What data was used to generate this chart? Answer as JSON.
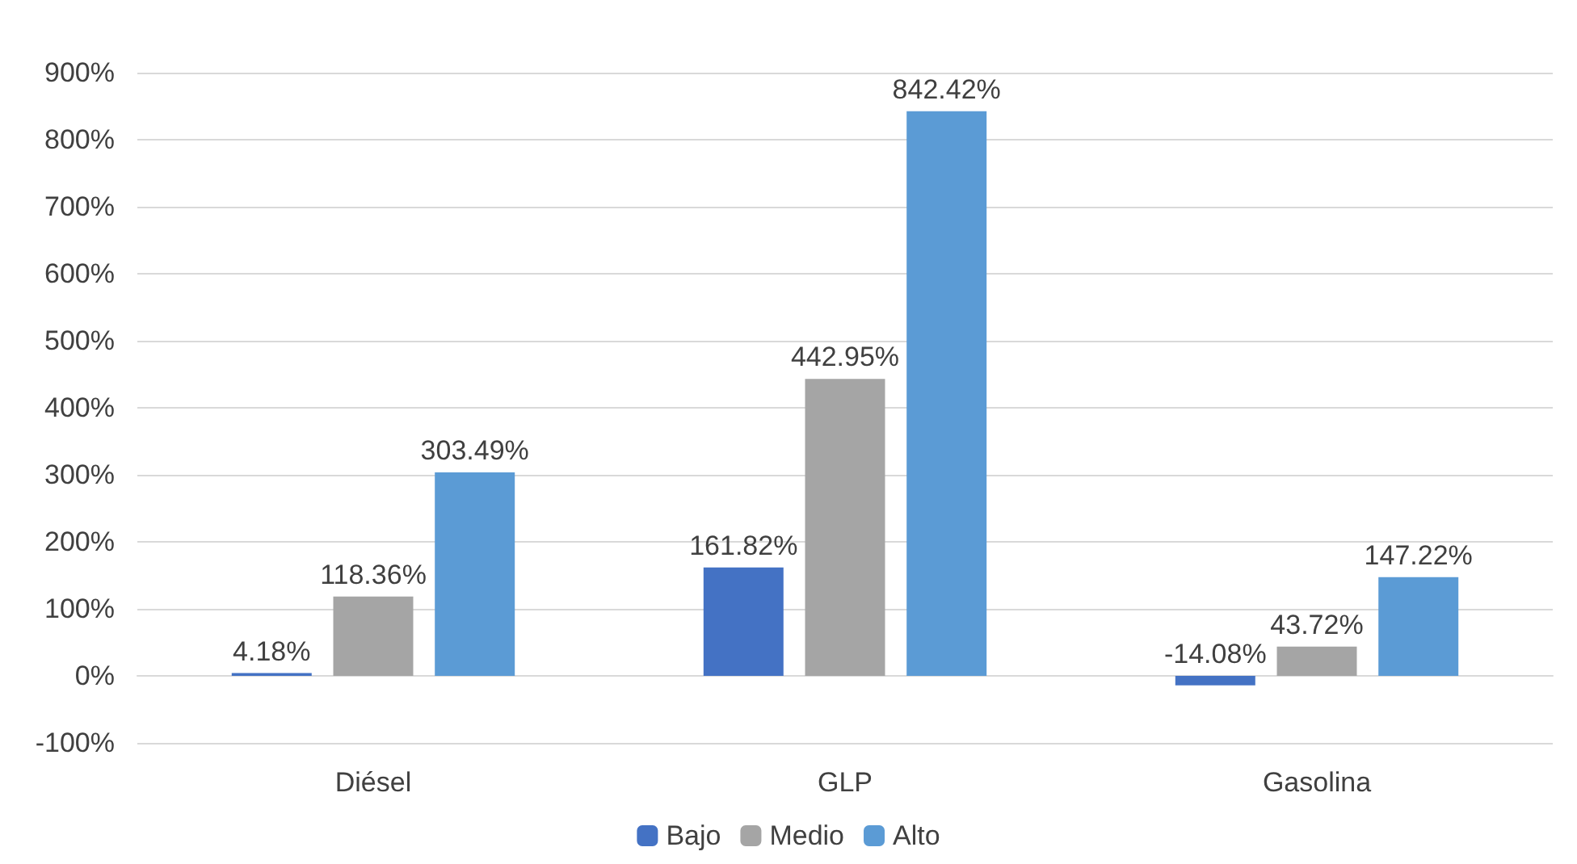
{
  "chart_data": {
    "type": "bar",
    "categories": [
      "Diésel",
      "GLP",
      "Gasolina"
    ],
    "series": [
      {
        "name": "Bajo",
        "color": "#4472c4",
        "values": [
          4.18,
          161.82,
          -14.08
        ],
        "value_labels": [
          "4.18%",
          "161.82%",
          "-14.08%"
        ]
      },
      {
        "name": "Medio",
        "color": "#a5a5a5",
        "values": [
          118.36,
          442.95,
          43.72
        ],
        "value_labels": [
          "118.36%",
          "442.95%",
          "43.72%"
        ]
      },
      {
        "name": "Alto",
        "color": "#5b9bd5",
        "values": [
          303.49,
          842.42,
          147.22
        ],
        "value_labels": [
          "303.49%",
          "842.42%",
          "147.22%"
        ]
      }
    ],
    "ylim": [
      -100,
      900
    ],
    "yticks": [
      {
        "value": -100,
        "label": "-100%"
      },
      {
        "value": 0,
        "label": "0%"
      },
      {
        "value": 100,
        "label": "100%"
      },
      {
        "value": 200,
        "label": "200%"
      },
      {
        "value": 300,
        "label": "300%"
      },
      {
        "value": 400,
        "label": "400%"
      },
      {
        "value": 500,
        "label": "500%"
      },
      {
        "value": 600,
        "label": "600%"
      },
      {
        "value": 700,
        "label": "700%"
      },
      {
        "value": 800,
        "label": "800%"
      },
      {
        "value": 900,
        "label": "900%"
      }
    ],
    "grid": "y",
    "legend": "bottom"
  }
}
